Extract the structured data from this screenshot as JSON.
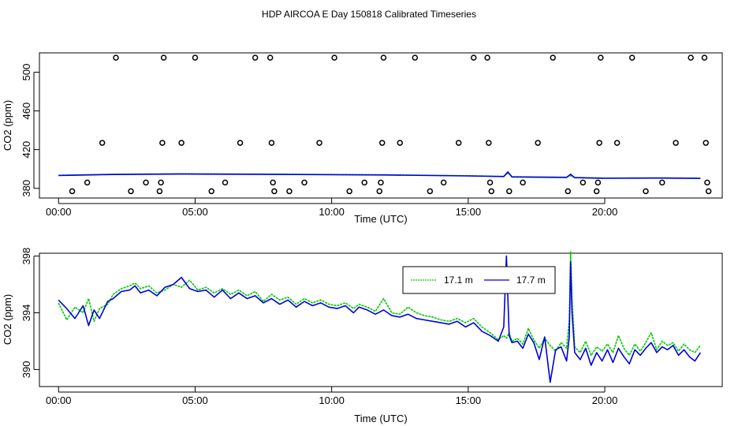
{
  "title": "HDP AIRCOA E  Day 150818  Calibrated Timeseries",
  "colors": {
    "green": "#00cc00",
    "blue": "#0000dd",
    "axis": "#000000"
  },
  "chart_data": [
    {
      "type": "scatter+line",
      "xlabel": "Time (UTC)",
      "ylabel": "CO2 (ppm)",
      "xlim": [
        -0.7,
        24.3
      ],
      "ylim": [
        370,
        520
      ],
      "xticks": [
        0,
        5,
        10,
        15,
        20
      ],
      "xtick_labels": [
        "00:00",
        "05:00",
        "10:00",
        "15:00",
        "20:00"
      ],
      "yticks": [
        380,
        420,
        460,
        500
      ],
      "ytick_labels": [
        "380",
        "420",
        "460",
        "500"
      ],
      "circles": [
        {
          "x": 0.5,
          "y": 377
        },
        {
          "x": 1.05,
          "y": 386
        },
        {
          "x": 1.6,
          "y": 427
        },
        {
          "x": 2.1,
          "y": 515
        },
        {
          "x": 2.65,
          "y": 377
        },
        {
          "x": 3.2,
          "y": 386
        },
        {
          "x": 3.7,
          "y": 377
        },
        {
          "x": 3.75,
          "y": 386
        },
        {
          "x": 3.8,
          "y": 427
        },
        {
          "x": 3.85,
          "y": 515
        },
        {
          "x": 4.5,
          "y": 427
        },
        {
          "x": 5.0,
          "y": 515
        },
        {
          "x": 5.6,
          "y": 377
        },
        {
          "x": 6.1,
          "y": 386
        },
        {
          "x": 6.65,
          "y": 427
        },
        {
          "x": 7.2,
          "y": 515
        },
        {
          "x": 7.75,
          "y": 515
        },
        {
          "x": 7.8,
          "y": 427
        },
        {
          "x": 7.85,
          "y": 386
        },
        {
          "x": 7.9,
          "y": 377
        },
        {
          "x": 8.45,
          "y": 377
        },
        {
          "x": 9.0,
          "y": 386
        },
        {
          "x": 9.55,
          "y": 427
        },
        {
          "x": 10.1,
          "y": 515
        },
        {
          "x": 10.65,
          "y": 377
        },
        {
          "x": 11.2,
          "y": 386
        },
        {
          "x": 11.75,
          "y": 377
        },
        {
          "x": 11.8,
          "y": 386
        },
        {
          "x": 11.85,
          "y": 427
        },
        {
          "x": 11.9,
          "y": 515
        },
        {
          "x": 12.5,
          "y": 427
        },
        {
          "x": 13.05,
          "y": 515
        },
        {
          "x": 13.6,
          "y": 377
        },
        {
          "x": 14.1,
          "y": 386
        },
        {
          "x": 14.65,
          "y": 427
        },
        {
          "x": 15.2,
          "y": 515
        },
        {
          "x": 15.7,
          "y": 515
        },
        {
          "x": 15.75,
          "y": 427
        },
        {
          "x": 15.8,
          "y": 386
        },
        {
          "x": 15.85,
          "y": 377
        },
        {
          "x": 16.5,
          "y": 377
        },
        {
          "x": 17.0,
          "y": 386
        },
        {
          "x": 17.55,
          "y": 427
        },
        {
          "x": 18.1,
          "y": 515
        },
        {
          "x": 18.65,
          "y": 377
        },
        {
          "x": 19.2,
          "y": 386
        },
        {
          "x": 19.7,
          "y": 377
        },
        {
          "x": 19.75,
          "y": 386
        },
        {
          "x": 19.8,
          "y": 427
        },
        {
          "x": 19.85,
          "y": 515
        },
        {
          "x": 20.45,
          "y": 427
        },
        {
          "x": 21.0,
          "y": 515
        },
        {
          "x": 21.5,
          "y": 377
        },
        {
          "x": 22.1,
          "y": 386
        },
        {
          "x": 22.6,
          "y": 427
        },
        {
          "x": 23.15,
          "y": 515
        },
        {
          "x": 23.65,
          "y": 515
        },
        {
          "x": 23.7,
          "y": 427
        },
        {
          "x": 23.75,
          "y": 386
        },
        {
          "x": 23.8,
          "y": 377
        }
      ],
      "series": [
        {
          "name": "17.1 m",
          "color": "#00cc00",
          "x": [
            0,
            2,
            4.5,
            8,
            12,
            15,
            16.3,
            16.45,
            16.6,
            18.6,
            18.75,
            18.9,
            20,
            22,
            23.5
          ],
          "y": [
            393.5,
            394.5,
            395.0,
            394.6,
            394.0,
            393.0,
            392.3,
            396.0,
            392.0,
            391.5,
            393.0,
            391.2,
            390.6,
            390.8,
            390.5
          ]
        },
        {
          "name": "17.7 m",
          "color": "#0000dd",
          "x": [
            0,
            2,
            4.5,
            8,
            12,
            15,
            16.3,
            16.45,
            16.6,
            18.6,
            18.75,
            18.9,
            20,
            22,
            23.5
          ],
          "y": [
            393.3,
            394.3,
            394.8,
            394.4,
            393.8,
            392.8,
            392.2,
            397.0,
            391.8,
            391.3,
            394.5,
            391.0,
            390.4,
            390.6,
            390.3
          ]
        }
      ]
    },
    {
      "type": "line",
      "xlabel": "Time (UTC)",
      "ylabel": "CO2 (ppm)",
      "xlim": [
        -0.7,
        24.3
      ],
      "ylim": [
        388.8,
        398.2
      ],
      "xticks": [
        0,
        5,
        10,
        15,
        20
      ],
      "xtick_labels": [
        "00:00",
        "05:00",
        "10:00",
        "15:00",
        "20:00"
      ],
      "yticks": [
        390,
        394,
        398
      ],
      "ytick_labels": [
        "390",
        "394",
        "398"
      ],
      "legend": {
        "placement": "top-right",
        "entries": [
          "17.1 m",
          "17.7 m"
        ]
      },
      "series": [
        {
          "name": "17.1 m",
          "color": "#00cc00",
          "x": [
            0.0,
            0.3,
            0.6,
            0.9,
            1.1,
            1.3,
            1.5,
            1.8,
            2.0,
            2.3,
            2.6,
            2.8,
            3.0,
            3.3,
            3.6,
            3.9,
            4.2,
            4.5,
            4.8,
            5.1,
            5.4,
            5.7,
            6.0,
            6.3,
            6.6,
            6.9,
            7.2,
            7.5,
            7.8,
            8.1,
            8.4,
            8.7,
            9.0,
            9.3,
            9.6,
            9.9,
            10.2,
            10.5,
            10.8,
            11.0,
            11.3,
            11.6,
            11.9,
            12.2,
            12.5,
            12.8,
            13.1,
            13.4,
            13.7,
            14.0,
            14.3,
            14.6,
            14.9,
            15.2,
            15.5,
            15.8,
            16.1,
            16.3,
            16.4,
            16.5,
            16.6,
            16.8,
            17.0,
            17.2,
            17.4,
            17.6,
            17.8,
            18.0,
            18.2,
            18.4,
            18.6,
            18.7,
            18.75,
            18.8,
            18.9,
            19.1,
            19.3,
            19.5,
            19.7,
            19.9,
            20.1,
            20.3,
            20.5,
            20.7,
            20.9,
            21.1,
            21.3,
            21.5,
            21.7,
            21.9,
            22.1,
            22.3,
            22.5,
            22.7,
            22.9,
            23.1,
            23.3,
            23.5
          ],
          "y": [
            394.7,
            393.5,
            394.4,
            394.0,
            395.0,
            393.4,
            394.3,
            394.6,
            395.3,
            395.7,
            395.9,
            396.1,
            395.7,
            395.9,
            395.4,
            395.6,
            396.0,
            395.8,
            396.3,
            395.6,
            395.8,
            395.4,
            395.7,
            395.3,
            395.6,
            395.2,
            395.5,
            394.8,
            395.3,
            394.9,
            395.1,
            394.6,
            395.0,
            394.7,
            394.9,
            394.6,
            394.5,
            394.7,
            394.3,
            394.6,
            394.4,
            394.1,
            395.0,
            394.0,
            393.9,
            394.4,
            394.0,
            393.8,
            393.7,
            393.5,
            393.4,
            393.6,
            393.3,
            393.6,
            393.0,
            392.6,
            392.1,
            392.4,
            392.2,
            392.6,
            392.0,
            392.2,
            391.8,
            392.9,
            392.1,
            391.5,
            392.2,
            391.7,
            391.3,
            391.9,
            391.5,
            393.5,
            398.3,
            395.0,
            391.6,
            391.2,
            392.0,
            391.0,
            391.6,
            391.3,
            391.8,
            391.2,
            392.4,
            391.5,
            391.0,
            391.8,
            391.3,
            391.9,
            392.6,
            391.4,
            392.0,
            391.7,
            391.9,
            391.3,
            391.8,
            391.4,
            391.2,
            391.7
          ]
        },
        {
          "name": "17.7 m",
          "color": "#0000dd",
          "x": [
            0.0,
            0.3,
            0.6,
            0.9,
            1.1,
            1.3,
            1.5,
            1.8,
            2.0,
            2.3,
            2.6,
            2.8,
            3.0,
            3.3,
            3.6,
            3.9,
            4.2,
            4.5,
            4.8,
            5.1,
            5.4,
            5.7,
            6.0,
            6.3,
            6.6,
            6.9,
            7.2,
            7.5,
            7.8,
            8.1,
            8.4,
            8.7,
            9.0,
            9.3,
            9.6,
            9.9,
            10.2,
            10.5,
            10.8,
            11.0,
            11.3,
            11.6,
            11.9,
            12.2,
            12.5,
            12.8,
            13.1,
            13.4,
            13.7,
            14.0,
            14.3,
            14.6,
            14.9,
            15.2,
            15.5,
            15.8,
            16.1,
            16.3,
            16.4,
            16.5,
            16.6,
            16.8,
            17.0,
            17.2,
            17.4,
            17.6,
            17.8,
            18.0,
            18.2,
            18.4,
            18.6,
            18.7,
            18.75,
            18.8,
            18.9,
            19.1,
            19.3,
            19.5,
            19.7,
            19.9,
            20.1,
            20.3,
            20.5,
            20.7,
            20.9,
            21.1,
            21.3,
            21.5,
            21.7,
            21.9,
            22.1,
            22.3,
            22.5,
            22.7,
            22.9,
            23.1,
            23.3,
            23.5
          ],
          "y": [
            394.9,
            394.3,
            393.6,
            394.5,
            393.1,
            394.2,
            393.6,
            394.8,
            395.0,
            395.5,
            395.6,
            395.9,
            395.4,
            395.6,
            395.2,
            395.8,
            396.0,
            396.5,
            395.7,
            395.5,
            395.6,
            395.1,
            395.6,
            395.0,
            395.4,
            395.0,
            395.2,
            394.7,
            395.0,
            394.6,
            394.9,
            394.4,
            394.8,
            394.5,
            394.7,
            394.4,
            394.3,
            394.5,
            394.0,
            394.4,
            394.2,
            393.9,
            394.2,
            393.8,
            393.7,
            393.9,
            393.6,
            393.5,
            393.4,
            393.3,
            393.2,
            393.4,
            393.0,
            393.3,
            392.7,
            392.4,
            392.0,
            393.0,
            398.0,
            392.4,
            391.9,
            392.0,
            391.5,
            392.5,
            391.9,
            390.7,
            392.3,
            389.1,
            391.4,
            391.6,
            390.6,
            392.3,
            397.6,
            394.0,
            391.2,
            390.7,
            391.5,
            390.3,
            391.2,
            390.6,
            391.4,
            390.5,
            391.5,
            390.9,
            390.4,
            391.4,
            391.0,
            391.5,
            391.9,
            391.2,
            391.6,
            391.4,
            391.7,
            391.0,
            391.4,
            390.9,
            390.6,
            391.2
          ]
        }
      ]
    }
  ]
}
